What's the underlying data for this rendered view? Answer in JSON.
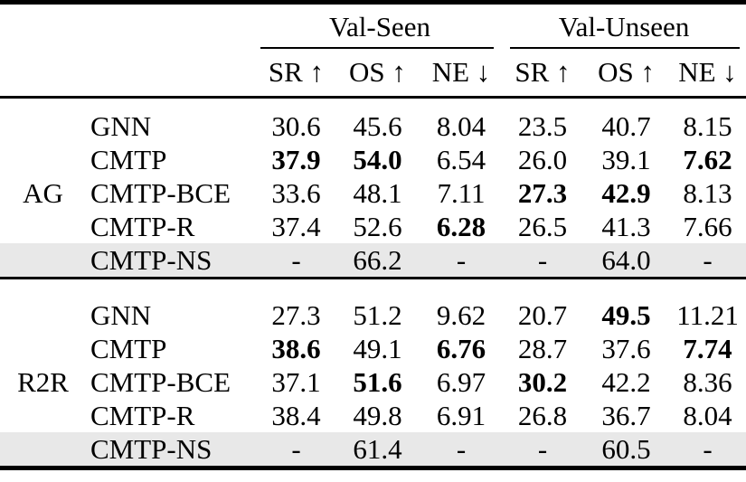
{
  "table": {
    "col_groups": [
      {
        "label": "Val-Seen",
        "metrics": [
          "SR ↑",
          "OS ↑",
          "NE ↓"
        ]
      },
      {
        "label": "Val-Unseen",
        "metrics": [
          "SR ↑",
          "OS ↑",
          "NE ↓"
        ]
      }
    ],
    "sections": [
      {
        "group": "AG",
        "rows": [
          {
            "method": "GNN",
            "highlight": false,
            "values": [
              {
                "text": "30.6",
                "bold": false
              },
              {
                "text": "45.6",
                "bold": false
              },
              {
                "text": "8.04",
                "bold": false
              },
              {
                "text": "23.5",
                "bold": false
              },
              {
                "text": "40.7",
                "bold": false
              },
              {
                "text": "8.15",
                "bold": false
              }
            ]
          },
          {
            "method": "CMTP",
            "highlight": false,
            "values": [
              {
                "text": "37.9",
                "bold": true
              },
              {
                "text": "54.0",
                "bold": true
              },
              {
                "text": "6.54",
                "bold": false
              },
              {
                "text": "26.0",
                "bold": false
              },
              {
                "text": "39.1",
                "bold": false
              },
              {
                "text": "7.62",
                "bold": true
              }
            ]
          },
          {
            "method": "CMTP-BCE",
            "highlight": false,
            "values": [
              {
                "text": "33.6",
                "bold": false
              },
              {
                "text": "48.1",
                "bold": false
              },
              {
                "text": "7.11",
                "bold": false
              },
              {
                "text": "27.3",
                "bold": true
              },
              {
                "text": "42.9",
                "bold": true
              },
              {
                "text": "8.13",
                "bold": false
              }
            ]
          },
          {
            "method": "CMTP-R",
            "highlight": false,
            "values": [
              {
                "text": "37.4",
                "bold": false
              },
              {
                "text": "52.6",
                "bold": false
              },
              {
                "text": "6.28",
                "bold": true
              },
              {
                "text": "26.5",
                "bold": false
              },
              {
                "text": "41.3",
                "bold": false
              },
              {
                "text": "7.66",
                "bold": false
              }
            ]
          },
          {
            "method": "CMTP-NS",
            "highlight": true,
            "values": [
              {
                "text": "-",
                "bold": false
              },
              {
                "text": "66.2",
                "bold": false
              },
              {
                "text": "-",
                "bold": false
              },
              {
                "text": "-",
                "bold": false
              },
              {
                "text": "64.0",
                "bold": false
              },
              {
                "text": "-",
                "bold": false
              }
            ]
          }
        ]
      },
      {
        "group": "R2R",
        "rows": [
          {
            "method": "GNN",
            "highlight": false,
            "values": [
              {
                "text": "27.3",
                "bold": false
              },
              {
                "text": "51.2",
                "bold": false
              },
              {
                "text": "9.62",
                "bold": false
              },
              {
                "text": "20.7",
                "bold": false
              },
              {
                "text": "49.5",
                "bold": true
              },
              {
                "text": "11.21",
                "bold": false
              }
            ]
          },
          {
            "method": "CMTP",
            "highlight": false,
            "values": [
              {
                "text": "38.6",
                "bold": true
              },
              {
                "text": "49.1",
                "bold": false
              },
              {
                "text": "6.76",
                "bold": true
              },
              {
                "text": "28.7",
                "bold": false
              },
              {
                "text": "37.6",
                "bold": false
              },
              {
                "text": "7.74",
                "bold": true
              }
            ]
          },
          {
            "method": "CMTP-BCE",
            "highlight": false,
            "values": [
              {
                "text": "37.1",
                "bold": false
              },
              {
                "text": "51.6",
                "bold": true
              },
              {
                "text": "6.97",
                "bold": false
              },
              {
                "text": "30.2",
                "bold": true
              },
              {
                "text": "42.2",
                "bold": false
              },
              {
                "text": "8.36",
                "bold": false
              }
            ]
          },
          {
            "method": "CMTP-R",
            "highlight": false,
            "values": [
              {
                "text": "38.4",
                "bold": false
              },
              {
                "text": "49.8",
                "bold": false
              },
              {
                "text": "6.91",
                "bold": false
              },
              {
                "text": "26.8",
                "bold": false
              },
              {
                "text": "36.7",
                "bold": false
              },
              {
                "text": "8.04",
                "bold": false
              }
            ]
          },
          {
            "method": "CMTP-NS",
            "highlight": true,
            "values": [
              {
                "text": "-",
                "bold": false
              },
              {
                "text": "61.4",
                "bold": false
              },
              {
                "text": "-",
                "bold": false
              },
              {
                "text": "-",
                "bold": false
              },
              {
                "text": "60.5",
                "bold": false
              },
              {
                "text": "-",
                "bold": false
              }
            ]
          }
        ]
      }
    ],
    "colors": {
      "highlight_row_bg": "#e8e8e8",
      "rule": "#000000",
      "text": "#000000",
      "background": "#ffffff"
    }
  }
}
